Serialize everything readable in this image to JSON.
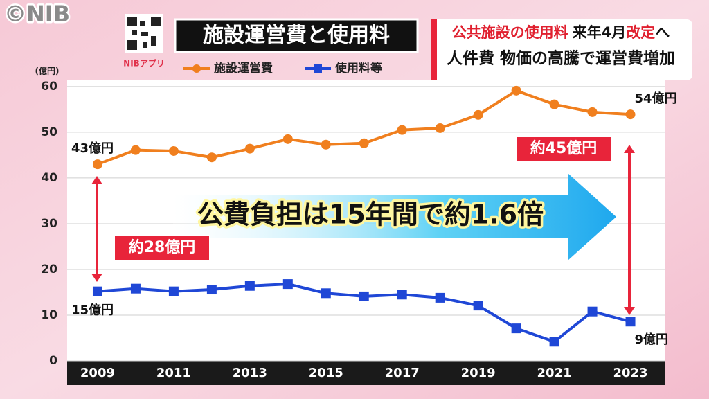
{
  "watermark": "©NIB",
  "app_label": "NIBアプリ",
  "headline": {
    "line1": [
      "公共施設の使用料",
      "来年4月",
      "改定",
      "へ"
    ],
    "line2": "人件費 物価の高騰で運営費増加"
  },
  "chart_data": {
    "type": "line",
    "title": "施設運営費と使用料",
    "y_unit": "(億円)",
    "x": [
      2009,
      2010,
      2011,
      2012,
      2013,
      2014,
      2015,
      2016,
      2017,
      2018,
      2019,
      2020,
      2021,
      2022,
      2023
    ],
    "xlim": [
      2008.2,
      2023.9
    ],
    "xticks": [
      2009,
      2011,
      2013,
      2015,
      2017,
      2019,
      2021,
      2023
    ],
    "ylim": [
      0,
      61.5
    ],
    "yticks": [
      0,
      10,
      20,
      30,
      40,
      50,
      60
    ],
    "grid": true,
    "series": [
      {
        "name": "施設運営費",
        "color": "#f07f1e",
        "marker": "circle",
        "values": [
          43.0,
          46.1,
          45.9,
          44.5,
          46.4,
          48.5,
          47.3,
          47.6,
          50.5,
          50.9,
          53.8,
          59.1,
          56.1,
          54.4,
          53.9
        ],
        "value_labels": [
          "43億円",
          null,
          null,
          null,
          null,
          null,
          null,
          null,
          null,
          null,
          null,
          null,
          null,
          null,
          "54億円"
        ]
      },
      {
        "name": "使用料等",
        "color": "#1f47d6",
        "marker": "square",
        "values": [
          15.2,
          15.8,
          15.2,
          15.6,
          16.4,
          16.8,
          14.8,
          14.1,
          14.5,
          13.8,
          12.1,
          7.1,
          4.2,
          10.8,
          8.6
        ],
        "value_labels": [
          "15億円",
          null,
          null,
          null,
          null,
          null,
          null,
          null,
          null,
          null,
          null,
          null,
          null,
          null,
          "9億円"
        ]
      }
    ],
    "annotations": [
      "約28億円",
      "約45億円",
      "公費負担は15年間で約1.6倍"
    ]
  }
}
